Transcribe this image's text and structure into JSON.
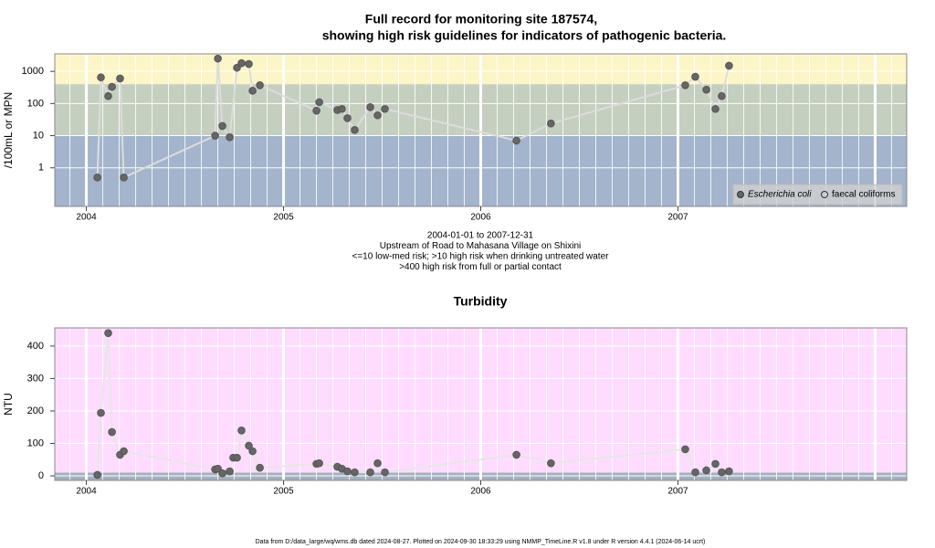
{
  "chart_data": [
    {
      "type": "scatter",
      "title": [
        "Full record for monitoring site 187574,",
        "showing high risk guidelines for indicators of pathogenic bacteria."
      ],
      "subtitle": [
        "2004-01-01 to 2007-12-31",
        "Upstream of Road to Mahasana Village on Shixini",
        "<=10 low-med risk; >10 high risk when drinking untreated water",
        ">400 high risk from full or partial contact"
      ],
      "y_label": "/100mL or MPN",
      "log_y": true,
      "xlim": [
        2003.84,
        2008.16
      ],
      "xticks": [
        2004,
        2005,
        2006,
        2007
      ],
      "ylim": [
        0.063,
        3500
      ],
      "yticks": [
        1,
        10,
        100,
        1000
      ],
      "bands": [
        {
          "to": 10,
          "color": "#a3b4cc"
        },
        {
          "from": 10,
          "to": 400,
          "color": "#c5cfc0"
        },
        {
          "from": 400,
          "color": "#fcf5c8"
        }
      ],
      "grid": true,
      "legend": "bottom-right",
      "line_color": "#dcdcdc",
      "x": [
        2004.056,
        2004.074,
        2004.111,
        2004.13,
        2004.171,
        2004.19,
        2004.653,
        2004.667,
        2004.69,
        2004.727,
        2004.764,
        2004.787,
        2004.824,
        2004.843,
        2004.88,
        2005.167,
        2005.181,
        2005.273,
        2005.296,
        2005.324,
        2005.361,
        2005.44,
        2005.477,
        2005.514,
        2006.181,
        2006.356,
        2007.037,
        2007.088,
        2007.144,
        2007.19,
        2007.222,
        2007.259
      ],
      "series": [
        {
          "name": "Escherichia coli",
          "color": "#666666",
          "font_style": "italic",
          "filled": true,
          "values": [
            0.5,
            650,
            170,
            330,
            600,
            0.5,
            10,
            2500,
            20,
            9,
            1300,
            1800,
            1700,
            250,
            370,
            60,
            110,
            63,
            68,
            35,
            15,
            77,
            43,
            68,
            7,
            24,
            370,
            680,
            270,
            68,
            170,
            1500
          ]
        },
        {
          "name": "faecal coliforms",
          "color": "#666666",
          "filled": false,
          "values": [
            null,
            null,
            null,
            null,
            null,
            null,
            null,
            null,
            null,
            null,
            null,
            null,
            null,
            null,
            null,
            null,
            null,
            null,
            null,
            null,
            null,
            null,
            null,
            null,
            null,
            null,
            null,
            null,
            null,
            null,
            null,
            null
          ]
        }
      ]
    },
    {
      "type": "scatter",
      "title": [
        "Turbidity"
      ],
      "y_label": "NTU",
      "log_y": false,
      "xlim": [
        2003.84,
        2008.16
      ],
      "xticks": [
        2004,
        2005,
        2006,
        2007
      ],
      "ylim": [
        -14,
        456
      ],
      "yticks": [
        0,
        100,
        200,
        300,
        400
      ],
      "bands": [
        {
          "to": 10,
          "color": "#a3b0c0"
        },
        {
          "from": 10,
          "color": "#ffdcff"
        }
      ],
      "grid": true,
      "line_color": "#e6e6e6",
      "x": [
        2004.056,
        2004.074,
        2004.111,
        2004.13,
        2004.171,
        2004.19,
        2004.653,
        2004.667,
        2004.69,
        2004.727,
        2004.745,
        2004.764,
        2004.787,
        2004.824,
        2004.843,
        2004.88,
        2005.167,
        2005.181,
        2005.273,
        2005.296,
        2005.324,
        2005.361,
        2005.44,
        2005.477,
        2005.514,
        2006.181,
        2006.356,
        2007.037,
        2007.088,
        2007.144,
        2007.19,
        2007.222,
        2007.259
      ],
      "series": [
        {
          "name": "Turbidity",
          "color": "#666666",
          "filled": true,
          "values": [
            3,
            194,
            440,
            135,
            65,
            76,
            20,
            22,
            8,
            14,
            56,
            56,
            140,
            93,
            76,
            25,
            37,
            39,
            28,
            22,
            14,
            11,
            11,
            39,
            11,
            65,
            39,
            82,
            11,
            17,
            37,
            11,
            14
          ]
        }
      ]
    }
  ],
  "footer": "Data from D:/data_large/wq/wms.db dated 2024-08-27. Plotted on 2024-09-30 18:33:29 using NMMP_TimeLine.R v1.8 under R version 4.4.1 (2024-06-14 ucrt)"
}
